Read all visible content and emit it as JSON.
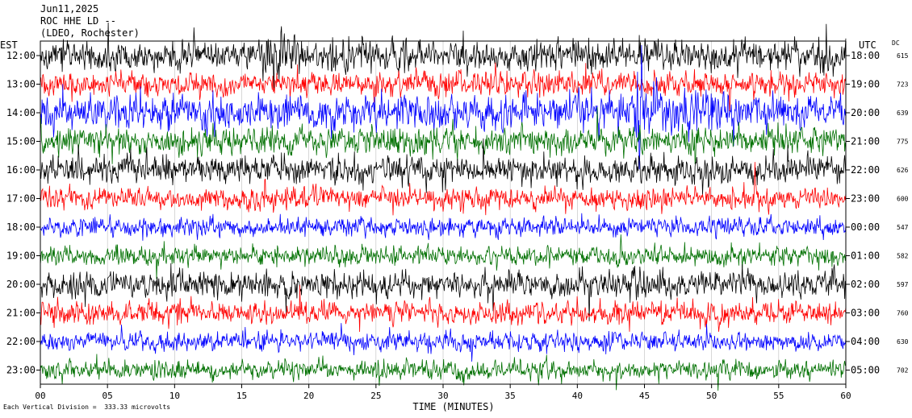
{
  "header": {
    "date": "Jun11,2025",
    "station": "ROC HHE LD --",
    "network": "(LDEO, Rochester)"
  },
  "labels": {
    "left_timezone": "EST",
    "right_timezone": "UTC",
    "dc_header": "DC",
    "xlabel": "TIME (MINUTES)",
    "footnote": "Each Vertical Division =  333.33 microvolts"
  },
  "chart_data": {
    "type": "line",
    "title": "",
    "xlabel": "TIME (MINUTES)",
    "xlim": [
      0,
      60
    ],
    "x_ticks": [
      "00",
      "05",
      "10",
      "15",
      "20",
      "25",
      "30",
      "35",
      "40",
      "45",
      "50",
      "55",
      "60"
    ],
    "grid": true,
    "trace_colors": [
      "#000000",
      "#ff0000",
      "#0000ff",
      "#007000"
    ],
    "rows": [
      {
        "est": "12:00",
        "utc": "18:00",
        "dc": "615",
        "amplitude": 0.55
      },
      {
        "est": "13:00",
        "utc": "19:00",
        "dc": "723",
        "amplitude": 0.45
      },
      {
        "est": "14:00",
        "utc": "20:00",
        "dc": "639",
        "amplitude": 0.65
      },
      {
        "est": "15:00",
        "utc": "21:00",
        "dc": "775",
        "amplitude": 0.5
      },
      {
        "est": "16:00",
        "utc": "22:00",
        "dc": "626",
        "amplitude": 0.5
      },
      {
        "est": "17:00",
        "utc": "23:00",
        "dc": "600",
        "amplitude": 0.4
      },
      {
        "est": "18:00",
        "utc": "00:00",
        "dc": "547",
        "amplitude": 0.35
      },
      {
        "est": "19:00",
        "utc": "01:00",
        "dc": "582",
        "amplitude": 0.35
      },
      {
        "est": "20:00",
        "utc": "02:00",
        "dc": "597",
        "amplitude": 0.5
      },
      {
        "est": "21:00",
        "utc": "03:00",
        "dc": "760",
        "amplitude": 0.4
      },
      {
        "est": "22:00",
        "utc": "04:00",
        "dc": "630",
        "amplitude": 0.35
      },
      {
        "est": "23:00",
        "utc": "05:00",
        "dc": "702",
        "amplitude": 0.35
      }
    ],
    "events": [
      {
        "row": 0,
        "start_min": 16.2,
        "end_min": 19.5,
        "peak": 2.2
      },
      {
        "row": 2,
        "start_min": 36.5,
        "end_min": 58.5,
        "peak": 1.4
      },
      {
        "row": 2,
        "start_min": 44.0,
        "end_min": 45.2,
        "peak": 3.5
      },
      {
        "row": 4,
        "start_min": 19.8,
        "end_min": 20.6,
        "peak": 1.3
      },
      {
        "row": 0,
        "start_min": 57.8,
        "end_min": 59.0,
        "peak": 2.5
      }
    ]
  }
}
